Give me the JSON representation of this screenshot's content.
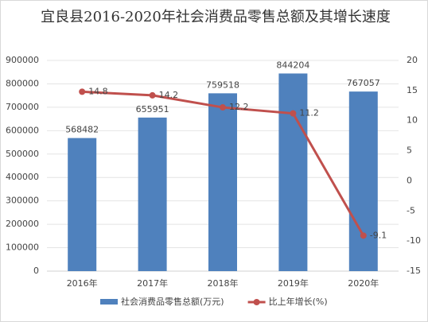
{
  "chart_data": {
    "type": "bar-line",
    "title": "宜良县2016-2020年社会消费品零售总额及其增长速度",
    "categories": [
      "2016年",
      "2017年",
      "2018年",
      "2019年",
      "2020年"
    ],
    "series": [
      {
        "name": "社会消费品零售总额(万元)",
        "type": "bar",
        "color": "#4f81bd",
        "values": [
          568482,
          655951,
          759518,
          844204,
          767057
        ]
      },
      {
        "name": "比上年增长(%)",
        "type": "line",
        "axis": "y2",
        "color": "#c0504d",
        "values": [
          14.8,
          14.2,
          12.2,
          11.2,
          -9.1
        ]
      }
    ],
    "ylim": [
      0,
      900000
    ],
    "yticks": [
      0,
      100000,
      200000,
      300000,
      400000,
      500000,
      600000,
      700000,
      800000,
      900000
    ],
    "y2lim": [
      -15,
      20
    ],
    "y2ticks": [
      -15,
      -10,
      -5,
      0,
      5,
      10,
      15,
      20
    ],
    "grid": true,
    "legend": "bottom"
  }
}
